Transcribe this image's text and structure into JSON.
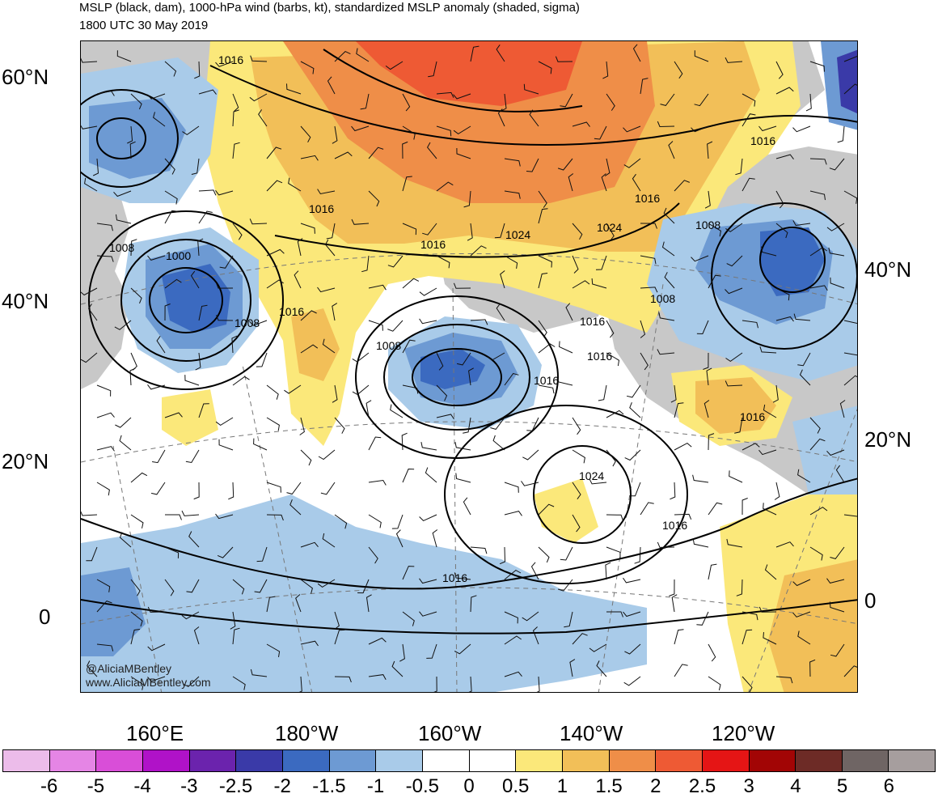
{
  "title": {
    "line1": "MSLP (black, dam), 1000-hPa wind (barbs, kt), standardized MSLP anomaly (shaded, sigma)",
    "line2": "1800 UTC 30 May 2019"
  },
  "axes": {
    "lat_left": [
      "60°N",
      "40°N",
      "20°N",
      "0"
    ],
    "lat_right": [
      "40°N",
      "20°N",
      "0"
    ],
    "lon_bottom": [
      "160°E",
      "180°W",
      "160°W",
      "140°W",
      "120°W"
    ]
  },
  "credit": {
    "handle": "@AliciaMBentley",
    "website": "www.AliciaMBentley.com"
  },
  "contour_labels": {
    "l1016": "1016",
    "l1024": "1024",
    "l1008": "1008",
    "l1000": "1000"
  },
  "colorbar": {
    "labels": [
      "-6",
      "-5",
      "-4",
      "-3",
      "-2.5",
      "-2",
      "-1.5",
      "-1",
      "-0.5",
      "0",
      "0.5",
      "1",
      "1.5",
      "2",
      "2.5",
      "3",
      "4",
      "5",
      "6"
    ],
    "colors": [
      "#ecbcea",
      "#e585e5",
      "#d94ed8",
      "#b012c8",
      "#6b23ad",
      "#3a3aa8",
      "#3b6ac0",
      "#6d9ad3",
      "#a9cbe9",
      "#ffffff",
      "#ffffff",
      "#fbe87a",
      "#f2bf58",
      "#ef8e48",
      "#ee5a34",
      "#e51515",
      "#a20505",
      "#6d2b26",
      "#6f6564",
      "#a69e9e"
    ]
  },
  "palette": {
    "anomaly_neg_05": "#a9cbe9",
    "anomaly_neg_10": "#6d9ad3",
    "anomaly_neg_15": "#3b6ac0",
    "anomaly_neg_20": "#3a3aa8",
    "anomaly_pos_05": "#fbe87a",
    "anomaly_pos_10": "#f2bf58",
    "anomaly_pos_15": "#ef8e48",
    "anomaly_pos_20": "#ee5a34",
    "land": "#c8c8c8"
  }
}
